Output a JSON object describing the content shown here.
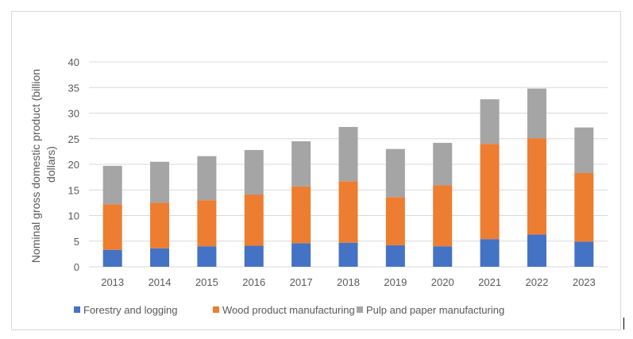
{
  "chart_data": {
    "type": "bar",
    "stacked": true,
    "title": "",
    "xlabel": "",
    "ylabel": "Nominal gross domestic product (billion dollars)",
    "ylabel_lines": [
      "Nominal gross domestic product (billion",
      "dollars)"
    ],
    "ylim": [
      0,
      40
    ],
    "yticks": [
      0,
      5,
      10,
      15,
      20,
      25,
      30,
      35,
      40
    ],
    "grid": true,
    "legend_position": "bottom",
    "categories": [
      "2013",
      "2014",
      "2015",
      "2016",
      "2017",
      "2018",
      "2019",
      "2020",
      "2021",
      "2022",
      "2023"
    ],
    "series": [
      {
        "name": "Forestry and logging",
        "color": "#4472c4",
        "values": [
          3.3,
          3.6,
          4.0,
          4.1,
          4.6,
          4.7,
          4.2,
          4.0,
          5.4,
          6.3,
          4.9
        ]
      },
      {
        "name": "Wood product manufacturing",
        "color": "#ed7d31",
        "values": [
          8.9,
          8.9,
          9.0,
          10.0,
          11.1,
          12.0,
          9.4,
          11.9,
          18.6,
          18.8,
          13.4
        ]
      },
      {
        "name": "Pulp and paper manufacturing",
        "color": "#a5a5a5",
        "values": [
          7.5,
          8.0,
          8.6,
          8.7,
          8.8,
          10.6,
          9.4,
          8.3,
          8.7,
          9.7,
          8.9
        ]
      }
    ]
  }
}
